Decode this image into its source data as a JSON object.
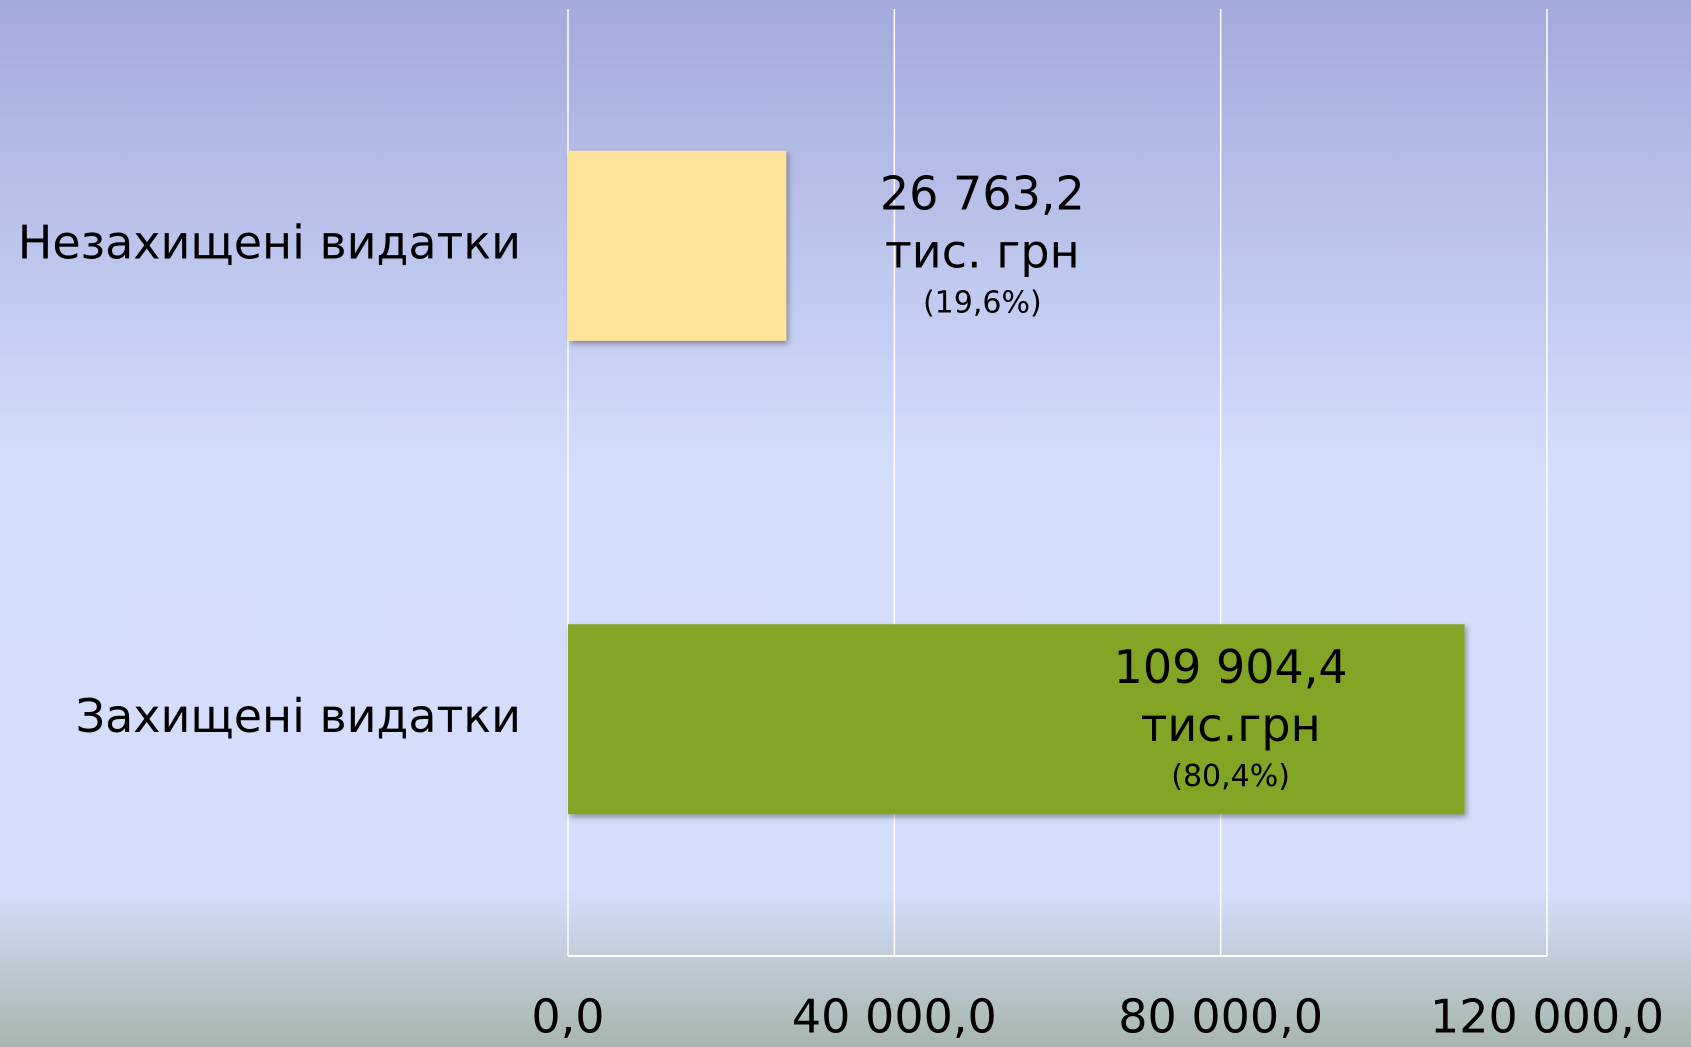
{
  "chart_data": {
    "type": "barh",
    "categories": [
      "Незахищені видатки",
      "Захищені видатки"
    ],
    "values": [
      26763.2,
      109904.4
    ],
    "value_labels": [
      "26 763,2",
      "109 904,4"
    ],
    "unit_labels": [
      "тис. грн",
      "тис.грн"
    ],
    "shares": [
      19.6,
      80.4
    ],
    "share_labels": [
      "(19,6%)",
      "(80,4%)"
    ],
    "colors": [
      "#fde498",
      "#83a528"
    ],
    "xlim": [
      0,
      120000
    ],
    "xticks": [
      {
        "value": 0,
        "label": "0,0"
      },
      {
        "value": 40000,
        "label": "40 000,0"
      },
      {
        "value": 80000,
        "label": "80 000,0"
      },
      {
        "value": 120000,
        "label": "120 000,0"
      }
    ],
    "grid": true
  }
}
